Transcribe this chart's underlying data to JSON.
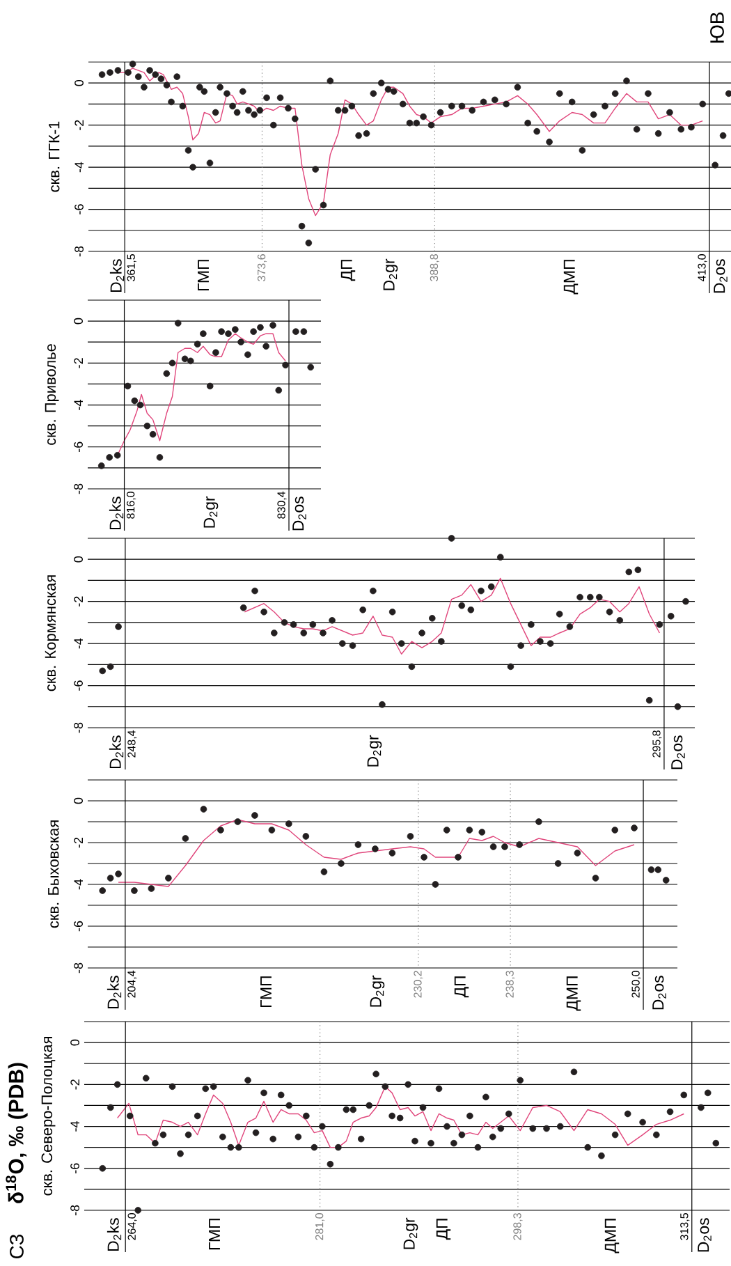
{
  "chart_data": [
    {
      "type": "scatter",
      "title": "δ$^{18}$O, ‰ (PDB)",
      "ylabel": "скв. Северо-Полоцкая",
      "xlim": [
        260.4,
        316.8
      ],
      "ylim": [
        -8,
        1
      ],
      "yticks": [
        -8,
        {
          "value": -7,
          "label": null
        },
        -6,
        {
          "value": -5,
          "label": null
        },
        -4,
        {
          "value": -3,
          "label": null
        },
        -2,
        {
          "value": -1,
          "label": null
        },
        0,
        {
          "value": 1,
          "label": null
        }
      ],
      "grid": "y",
      "tick_labels": "y",
      "series": [
        {
          "color": "#231f20",
          "marker": "circle",
          "x": [
            262.0,
            262.7,
            263.3,
            264.4,
            265.1,
            265.8,
            266.6,
            267.3,
            268.1,
            268.8,
            269.5,
            270.3,
            271.0,
            271.7,
            272.5,
            273.2,
            273.9,
            274.7,
            275.4,
            276.1,
            276.9,
            277.6,
            278.3,
            279.1,
            279.8,
            280.5,
            281.2,
            281.9,
            282.6,
            283.3,
            283.9,
            284.6,
            285.3,
            285.9,
            286.7,
            287.3,
            288.0,
            288.7,
            289.3,
            290.0,
            290.7,
            291.4,
            292.1,
            292.7,
            293.4,
            294.1,
            294.8,
            295.5,
            296.1,
            296.8,
            297.5,
            298.5,
            299.6,
            300.8,
            302.0,
            303.2,
            304.4,
            305.6,
            306.8,
            307.9,
            309.2,
            310.4,
            311.6,
            312.8,
            314.3,
            314.9,
            315.6
          ],
          "values": [
            -6.0,
            -3.1,
            -2.0,
            -3.5,
            -8.0,
            -1.7,
            -4.8,
            -4.4,
            -2.1,
            -5.3,
            -4.4,
            -3.5,
            -2.2,
            -2.1,
            -4.5,
            -5.0,
            -5.0,
            -1.8,
            -4.3,
            -2.4,
            -4.6,
            -2.5,
            -3.0,
            -4.5,
            -3.5,
            -5.0,
            -4.0,
            -5.8,
            -5.0,
            -3.2,
            -3.2,
            -4.6,
            -3.0,
            -1.5,
            -2.1,
            -3.5,
            -3.6,
            -2.0,
            -4.7,
            -3.1,
            -4.8,
            -2.2,
            -4.0,
            -4.8,
            -4.4,
            -3.5,
            -5.0,
            -2.6,
            -4.5,
            -4.1,
            -3.4,
            -1.8,
            -4.1,
            -4.1,
            -4.0,
            -1.4,
            -5.0,
            -5.4,
            -4.4,
            -3.4,
            -3.8,
            -4.4,
            -3.3,
            -2.5,
            -3.1,
            -2.4,
            -4.8
          ]
        },
        {
          "type": "line",
          "color": "#e0457b",
          "x": [
            263.3,
            264.3,
            265.1,
            265.8,
            266.6,
            267.3,
            268.1,
            268.8,
            269.5,
            270.3,
            271.0,
            271.7,
            272.5,
            273.2,
            273.9,
            274.7,
            275.4,
            276.1,
            276.9,
            277.6,
            278.3,
            279.1,
            279.8,
            280.5,
            281.2,
            281.9,
            282.6,
            283.3,
            283.9,
            284.6,
            285.3,
            285.9,
            286.7,
            287.3,
            288.0,
            288.7,
            289.3,
            290.0,
            290.7,
            291.4,
            292.1,
            292.7,
            293.4,
            294.1,
            294.8,
            295.5,
            296.1,
            296.8,
            297.5,
            298.5,
            299.6,
            300.8,
            302.0,
            303.2,
            304.4,
            305.6,
            306.8,
            307.9,
            309.2,
            310.4,
            311.6,
            312.8
          ],
          "values": [
            -3.6,
            -2.9,
            -4.4,
            -4.4,
            -4.8,
            -3.7,
            -3.8,
            -4.0,
            -3.8,
            -4.4,
            -3.4,
            -2.5,
            -2.9,
            -3.8,
            -4.9,
            -3.8,
            -3.6,
            -2.8,
            -3.8,
            -3.2,
            -3.4,
            -3.4,
            -3.7,
            -4.3,
            -4.2,
            -5.0,
            -5.0,
            -4.7,
            -3.8,
            -3.6,
            -3.5,
            -3.1,
            -2.1,
            -2.4,
            -3.2,
            -3.1,
            -3.5,
            -3.3,
            -4.2,
            -3.4,
            -3.6,
            -3.7,
            -4.4,
            -4.3,
            -4.4,
            -3.8,
            -4.1,
            -3.8,
            -3.5,
            -4.2,
            -3.1,
            -3.0,
            -3.3,
            -4.2,
            -3.2,
            -3.4,
            -3.9,
            -4.9,
            -4.4,
            -3.9,
            -3.7,
            -3.4
          ]
        }
      ],
      "ref_lines": [
        {
          "axis": "x",
          "value": 264.0,
          "label": "264,0",
          "color": "#000000",
          "line_style": "solid"
        },
        {
          "axis": "x",
          "value": 281.0,
          "label": "281,0",
          "color": "#808080",
          "line_style": "dotted"
        },
        {
          "axis": "x",
          "value": 298.3,
          "label": "298,3",
          "color": "#808080",
          "line_style": "dotted"
        },
        {
          "axis": "x",
          "value": 313.5,
          "label": "313,5",
          "color": "#000000",
          "line_style": "solid"
        }
      ],
      "annotations": [
        "СЗ",
        "D$_{2}$ks",
        "ГМП",
        "D$_{2}$gr",
        "ДП",
        "ДМП",
        "D$_{2}$os"
      ]
    },
    {
      "type": "scatter",
      "ylabel": "скв. Быховская",
      "xlim": [
        201.1,
        253.0
      ],
      "ylim": [
        -8,
        1
      ],
      "yticks": [
        -8,
        {
          "value": -7,
          "label": null
        },
        -6,
        {
          "value": -5,
          "label": null
        },
        -4,
        {
          "value": -3,
          "label": null
        },
        -2,
        {
          "value": -1,
          "label": null
        },
        0,
        {
          "value": 1,
          "label": null
        }
      ],
      "grid": "y",
      "tick_labels": "y",
      "series": [
        {
          "color": "#231f20",
          "marker": "circle",
          "x": [
            202.4,
            203.1,
            203.8,
            205.2,
            206.7,
            208.2,
            209.7,
            211.3,
            212.8,
            214.3,
            215.8,
            217.3,
            218.8,
            220.3,
            221.9,
            223.4,
            224.9,
            226.4,
            227.9,
            229.5,
            230.7,
            231.7,
            232.7,
            233.7,
            234.7,
            235.8,
            236.8,
            237.8,
            239.1,
            240.8,
            242.5,
            244.2,
            245.8,
            247.5,
            249.2,
            250.7,
            251.3,
            252.0
          ],
          "values": [
            -4.3,
            -3.7,
            -3.5,
            -4.3,
            -4.2,
            -3.7,
            -1.8,
            -0.4,
            -1.4,
            -1.0,
            -0.7,
            -1.4,
            -1.1,
            -1.7,
            -3.4,
            -3.0,
            -2.1,
            -2.3,
            -2.5,
            -1.7,
            -2.7,
            -4.0,
            -1.4,
            -2.7,
            -1.4,
            -1.5,
            -2.2,
            -2.2,
            -2.1,
            -1.0,
            -3.0,
            -2.5,
            -3.7,
            -1.4,
            -1.3,
            -3.3,
            -3.3,
            -3.8
          ]
        },
        {
          "type": "line",
          "color": "#e0457b",
          "x": [
            203.8,
            205.2,
            206.7,
            208.2,
            209.7,
            211.3,
            212.8,
            214.3,
            215.8,
            217.3,
            218.8,
            220.3,
            221.9,
            223.4,
            224.9,
            226.4,
            227.9,
            229.5,
            230.7,
            231.7,
            232.7,
            233.7,
            234.7,
            235.8,
            236.8,
            237.8,
            239.1,
            240.8,
            242.5,
            244.2,
            245.8,
            247.5,
            249.2
          ],
          "values": [
            -3.9,
            -3.9,
            -4.0,
            -4.1,
            -3.1,
            -1.9,
            -1.2,
            -0.9,
            -1.1,
            -1.1,
            -1.4,
            -2.1,
            -2.7,
            -2.8,
            -2.5,
            -2.4,
            -2.3,
            -2.2,
            -2.3,
            -2.7,
            -2.7,
            -2.7,
            -1.8,
            -1.9,
            -1.7,
            -2.0,
            -2.2,
            -1.8,
            -2.0,
            -2.2,
            -3.1,
            -2.4,
            -2.1
          ]
        }
      ],
      "ref_lines": [
        {
          "axis": "x",
          "value": 204.4,
          "label": "204,4",
          "color": "#000000",
          "line_style": "solid"
        },
        {
          "axis": "x",
          "value": 230.2,
          "label": "230,2",
          "color": "#808080",
          "line_style": "dotted"
        },
        {
          "axis": "x",
          "value": 238.3,
          "label": "238,3",
          "color": "#808080",
          "line_style": "dotted"
        },
        {
          "axis": "x",
          "value": 250.0,
          "label": "250,0",
          "color": "#000000",
          "line_style": "solid"
        }
      ],
      "annotations": [
        "D$_{2}$ks",
        "ГМП",
        "D$_{2}$gr",
        "ДП",
        "ДМП",
        "D$_{2}$os"
      ]
    },
    {
      "type": "scatter",
      "ylabel": "скв. Кормянская",
      "xlim": [
        245.1,
        298.5
      ],
      "ylim": [
        -8,
        1
      ],
      "yticks": [
        -8,
        {
          "value": -7,
          "label": null
        },
        -6,
        {
          "value": -5,
          "label": null
        },
        -4,
        {
          "value": -3,
          "label": null
        },
        -2,
        {
          "value": -1,
          "label": null
        },
        0,
        {
          "value": 1,
          "label": null
        }
      ],
      "grid": "y",
      "tick_labels": "y",
      "series": [
        {
          "color": "#231f20",
          "marker": "circle",
          "x": [
            246.4,
            247.1,
            247.8,
            258.8,
            259.8,
            260.6,
            261.5,
            262.4,
            263.2,
            264.1,
            264.9,
            265.8,
            266.6,
            267.5,
            268.4,
            269.3,
            270.2,
            271.0,
            271.9,
            272.7,
            273.6,
            274.5,
            275.4,
            276.2,
            277.1,
            278.0,
            278.8,
            279.7,
            280.6,
            281.4,
            282.3,
            283.2,
            284.1,
            284.9,
            285.8,
            286.6,
            287.5,
            288.4,
            289.3,
            290.1,
            291.0,
            291.9,
            292.7,
            293.5,
            294.5,
            295.4,
            296.4,
            297.0,
            297.7
          ],
          "values": [
            -5.3,
            -5.1,
            -3.2,
            -2.3,
            -1.5,
            -2.5,
            -3.5,
            -3.0,
            -3.1,
            -3.5,
            -3.1,
            -3.5,
            -2.9,
            -4.0,
            -4.1,
            -2.4,
            -1.5,
            -6.9,
            -2.5,
            -4.0,
            -5.1,
            -3.5,
            -2.8,
            -3.9,
            1.0,
            -2.2,
            -2.4,
            -1.5,
            -1.3,
            0.1,
            -5.1,
            -4.1,
            -3.1,
            -3.9,
            -4.0,
            -2.6,
            -3.2,
            -1.8,
            -1.8,
            -1.8,
            -2.5,
            -2.9,
            -0.6,
            -0.5,
            -6.7,
            -3.1,
            -2.7,
            -7.0,
            -2.0
          ]
        },
        {
          "type": "line",
          "color": "#e0457b",
          "x": [
            258.9,
            260.6,
            261.5,
            262.4,
            263.2,
            264.1,
            264.9,
            265.8,
            266.6,
            267.5,
            268.4,
            269.3,
            270.2,
            271.0,
            271.9,
            272.7,
            273.6,
            274.5,
            275.4,
            276.2,
            277.1,
            278.0,
            278.8,
            279.7,
            280.6,
            281.4,
            282.3,
            283.2,
            284.1,
            284.9,
            285.8,
            286.6,
            287.5,
            288.4,
            289.3,
            290.1,
            291.0,
            291.9,
            292.7,
            293.6,
            294.5,
            295.4
          ],
          "values": [
            -2.5,
            -2.1,
            -2.5,
            -3.0,
            -3.2,
            -3.3,
            -3.3,
            -3.4,
            -3.2,
            -3.4,
            -3.6,
            -3.5,
            -2.7,
            -3.6,
            -3.7,
            -4.5,
            -3.9,
            -4.2,
            -3.9,
            -3.5,
            -1.9,
            -1.7,
            -1.2,
            -2.0,
            -1.7,
            -0.9,
            -2.1,
            -3.1,
            -4.1,
            -3.7,
            -3.7,
            -3.5,
            -3.3,
            -2.6,
            -2.3,
            -1.9,
            -2.0,
            -2.5,
            -2.1,
            -1.3,
            -2.6,
            -3.5
          ]
        }
      ],
      "ref_lines": [
        {
          "axis": "x",
          "value": 248.4,
          "label": "248,4",
          "color": "#000000",
          "line_style": "solid"
        },
        {
          "axis": "x",
          "value": 295.8,
          "label": "295,8",
          "color": "#000000",
          "line_style": "solid"
        }
      ],
      "annotations": [
        "D$_{2}$ks",
        "D$_{2}$gr",
        "D$_{2}$os"
      ]
    },
    {
      "type": "scatter",
      "ylabel": "скв. Приволье",
      "xlim": [
        812.8,
        833.2
      ],
      "ylim": [
        -8,
        1
      ],
      "yticks": [
        -8,
        {
          "value": -7,
          "label": null
        },
        -6,
        {
          "value": -5,
          "label": null
        },
        -4,
        {
          "value": -3,
          "label": null
        },
        -2,
        {
          "value": -1,
          "label": null
        },
        0,
        {
          "value": 1,
          "label": null
        }
      ],
      "grid": "y",
      "tick_labels": "y",
      "series": [
        {
          "color": "#231f20",
          "marker": "circle",
          "x": [
            814.0,
            814.7,
            815.4,
            816.3,
            816.9,
            817.4,
            818.0,
            818.5,
            819.1,
            819.7,
            820.2,
            820.7,
            821.3,
            821.8,
            822.4,
            822.9,
            823.5,
            824.0,
            824.5,
            825.1,
            825.7,
            826.2,
            826.8,
            827.3,
            827.9,
            828.4,
            829.0,
            829.5,
            830.1,
            831.0,
            831.7,
            832.3
          ],
          "values": [
            -6.9,
            -6.5,
            -6.4,
            -3.1,
            -3.8,
            -4.0,
            -5.0,
            -5.4,
            -6.5,
            -2.5,
            -2.0,
            -0.1,
            -1.8,
            -1.9,
            -1.1,
            -0.6,
            -3.1,
            -1.5,
            -0.5,
            -0.6,
            -0.4,
            -1.0,
            -1.6,
            -0.5,
            -0.3,
            -1.2,
            -0.2,
            -3.3,
            -2.1,
            -0.5,
            -0.5,
            -2.2
          ]
        },
        {
          "type": "line",
          "color": "#e0457b",
          "x": [
            815.4,
            816.0,
            816.5,
            817.1,
            817.5,
            818.0,
            818.5,
            819.1,
            819.7,
            820.2,
            820.7,
            821.3,
            821.8,
            822.4,
            822.9,
            823.5,
            824.0,
            824.5,
            825.1,
            825.7,
            826.2,
            826.8,
            827.3,
            827.9,
            828.4,
            829.0,
            829.5,
            830.1
          ],
          "values": [
            -6.4,
            -5.7,
            -5.2,
            -4.3,
            -3.5,
            -4.4,
            -4.7,
            -5.7,
            -4.4,
            -3.6,
            -1.5,
            -1.3,
            -1.3,
            -1.5,
            -1.2,
            -1.6,
            -1.7,
            -1.7,
            -0.9,
            -0.6,
            -0.8,
            -1.0,
            -1.1,
            -0.7,
            -0.6,
            -0.6,
            -1.5,
            -1.9
          ]
        }
      ],
      "ref_lines": [
        {
          "axis": "x",
          "value": 816.0,
          "label": "816,0",
          "color": "#000000",
          "line_style": "solid"
        },
        {
          "axis": "x",
          "value": 830.4,
          "label": "830,4",
          "color": "#000000",
          "line_style": "solid"
        }
      ],
      "annotations": [
        "D$_{2}$ks",
        "D$_{2}$gr",
        "D$_{2}$os"
      ]
    },
    {
      "type": "scatter",
      "ylabel": "скв. ГГК-1",
      "xlim": [
        358.3,
        414.9
      ],
      "ylim": [
        -8,
        1
      ],
      "yticks": [
        -8,
        {
          "value": -7,
          "label": null
        },
        -6,
        {
          "value": -5,
          "label": null
        },
        -4,
        {
          "value": -3,
          "label": null
        },
        -2,
        {
          "value": -1,
          "label": null
        },
        0,
        {
          "value": 1,
          "label": null
        }
      ],
      "grid": "y",
      "tick_labels": "y",
      "series": [
        {
          "color": "#231f20",
          "marker": "circle",
          "x": [
            359.5,
            360.2,
            360.9,
            361.8,
            362.2,
            362.7,
            363.2,
            363.7,
            364.2,
            364.7,
            365.2,
            365.6,
            366.1,
            366.6,
            367.1,
            367.5,
            368.1,
            368.5,
            369.0,
            369.5,
            369.9,
            370.5,
            371.0,
            371.4,
            371.9,
            372.4,
            372.9,
            373.4,
            374.0,
            374.6,
            375.2,
            375.9,
            376.5,
            377.1,
            377.7,
            378.3,
            379.0,
            379.6,
            380.3,
            380.9,
            381.5,
            382.1,
            382.8,
            383.4,
            384.1,
            384.7,
            385.2,
            386.0,
            386.6,
            387.2,
            387.8,
            388.5,
            389.3,
            390.3,
            391.2,
            392.1,
            393.1,
            394.1,
            395.1,
            396.1,
            397.0,
            397.8,
            398.9,
            399.8,
            400.9,
            401.8,
            402.8,
            403.8,
            404.7,
            405.7,
            406.6,
            407.6,
            408.5,
            409.5,
            410.5,
            411.4,
            412.4,
            413.5,
            414.2,
            414.7
          ],
          "values": [
            0.4,
            0.5,
            0.6,
            0.5,
            0.9,
            0.3,
            -0.2,
            0.6,
            0.4,
            0.2,
            -0.1,
            -0.9,
            0.3,
            -1.1,
            -3.2,
            -4.0,
            -0.2,
            -0.4,
            -3.8,
            -1.4,
            -0.2,
            -0.5,
            -1.1,
            -1.4,
            -0.4,
            -1.3,
            -1.5,
            -1.3,
            -0.7,
            -2.0,
            -0.7,
            -1.2,
            -1.7,
            -6.8,
            -7.6,
            -4.1,
            -5.8,
            0.1,
            -1.3,
            -1.3,
            -1.1,
            -2.5,
            -2.4,
            -0.5,
            0.0,
            -0.3,
            -0.4,
            -1.0,
            -1.9,
            -1.9,
            -1.6,
            -2.0,
            -1.4,
            -1.1,
            -1.1,
            -1.3,
            -0.9,
            -0.8,
            -1.0,
            -0.2,
            -1.9,
            -2.3,
            -2.8,
            -0.5,
            -0.9,
            -3.2,
            -1.5,
            -1.1,
            -0.5,
            0.1,
            -2.2,
            -0.5,
            -2.4,
            -1.4,
            -2.2,
            -2.1,
            -1.0,
            -3.9,
            -2.5,
            -0.5
          ]
        },
        {
          "type": "line",
          "color": "#e0457b",
          "x": [
            361.0,
            361.5,
            362.2,
            363.2,
            363.7,
            364.5,
            364.9,
            365.6,
            366.1,
            366.6,
            367.1,
            367.5,
            368.0,
            368.5,
            369.0,
            369.5,
            369.9,
            370.5,
            371.0,
            371.4,
            371.9,
            372.4,
            372.9,
            373.4,
            374.0,
            374.6,
            375.2,
            375.9,
            376.5,
            377.1,
            377.7,
            378.3,
            379.0,
            379.6,
            380.3,
            380.9,
            381.5,
            382.1,
            382.8,
            383.4,
            384.1,
            384.7,
            385.2,
            386.0,
            386.6,
            387.2,
            387.8,
            388.5,
            389.3,
            390.3,
            391.2,
            392.1,
            393.1,
            394.1,
            395.1,
            396.1,
            397.0,
            397.8,
            398.9,
            399.8,
            400.9,
            401.8,
            402.8,
            403.8,
            404.7,
            405.7,
            406.6,
            407.6,
            408.5,
            409.5,
            410.5,
            411.4,
            412.4
          ],
          "values": [
            0.5,
            0.5,
            0.7,
            0.5,
            0.1,
            0.5,
            0.4,
            -0.3,
            -0.2,
            -0.5,
            -1.6,
            -2.7,
            -2.4,
            -1.4,
            -1.5,
            -1.9,
            -1.8,
            -0.5,
            -0.6,
            -1.0,
            -0.9,
            -1.0,
            -1.1,
            -1.4,
            -1.2,
            -1.3,
            -1.1,
            -1.2,
            -1.2,
            -3.9,
            -5.5,
            -6.3,
            -5.7,
            -3.4,
            -2.4,
            -0.8,
            -1.0,
            -1.5,
            -2.0,
            -1.8,
            -0.8,
            -0.2,
            -0.2,
            -0.5,
            -1.1,
            -1.5,
            -1.6,
            -1.9,
            -1.6,
            -1.5,
            -1.2,
            -1.2,
            -1.1,
            -1.0,
            -0.9,
            -0.6,
            -1.0,
            -1.5,
            -2.3,
            -1.8,
            -1.4,
            -1.5,
            -1.9,
            -1.9,
            -1.2,
            -0.5,
            -0.9,
            -0.9,
            -1.7,
            -1.5,
            -2.0,
            -2.0,
            -1.8
          ]
        }
      ],
      "ref_lines": [
        {
          "axis": "x",
          "value": 361.5,
          "label": "361,5",
          "color": "#000000",
          "line_style": "solid"
        },
        {
          "axis": "x",
          "value": 373.6,
          "label": "373,6",
          "color": "#808080",
          "line_style": "dotted"
        },
        {
          "axis": "x",
          "value": 388.8,
          "label": "388,8",
          "color": "#808080",
          "line_style": "dotted"
        },
        {
          "axis": "x",
          "value": 413.0,
          "label": "413,0",
          "color": "#000000",
          "line_style": "solid"
        }
      ],
      "annotations": [
        "ЮВ",
        "D$_{2}$ks",
        "ГМП",
        "ДП",
        "D$_{2}$gr",
        "ДМП",
        "D$_{2}$os"
      ]
    }
  ]
}
